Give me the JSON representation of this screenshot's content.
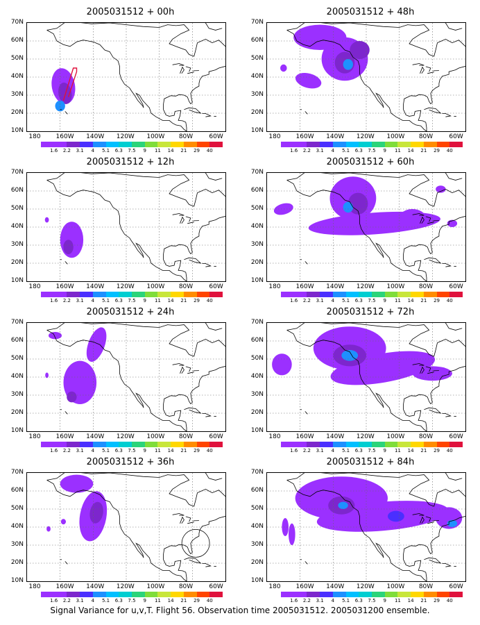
{
  "panels": [
    {
      "title": "2005031512 + 00h"
    },
    {
      "title": "2005031512 + 48h"
    },
    {
      "title": "2005031512 + 12h"
    },
    {
      "title": "2005031512 + 60h"
    },
    {
      "title": "2005031512 + 24h"
    },
    {
      "title": "2005031512 + 72h"
    },
    {
      "title": "2005031512 + 36h"
    },
    {
      "title": "2005031512 + 84h"
    }
  ],
  "axes": {
    "lat_labels": [
      "70N",
      "60N",
      "50N",
      "40N",
      "30N",
      "20N",
      "10N"
    ],
    "lon_labels": [
      "180",
      "160W",
      "140W",
      "120W",
      "100W",
      "80W",
      "60W"
    ]
  },
  "colorbar": {
    "levels": [
      "1.6",
      "2.2",
      "3.1",
      "4",
      "5.1",
      "6.3",
      "7.5",
      "9",
      "11",
      "14",
      "21",
      "29",
      "40"
    ],
    "colors": [
      "#9b30ff",
      "#7d26cd",
      "#4a2fff",
      "#1e90ff",
      "#00bfff",
      "#00ced1",
      "#2bd47a",
      "#7fdd3a",
      "#c8e63a",
      "#ffd700",
      "#ff8c00",
      "#ff4500",
      "#e0113c"
    ]
  },
  "caption": "Signal Variance for u,v,T. Flight 56. Observation time 2005031512. 2005031200 ensemble."
}
